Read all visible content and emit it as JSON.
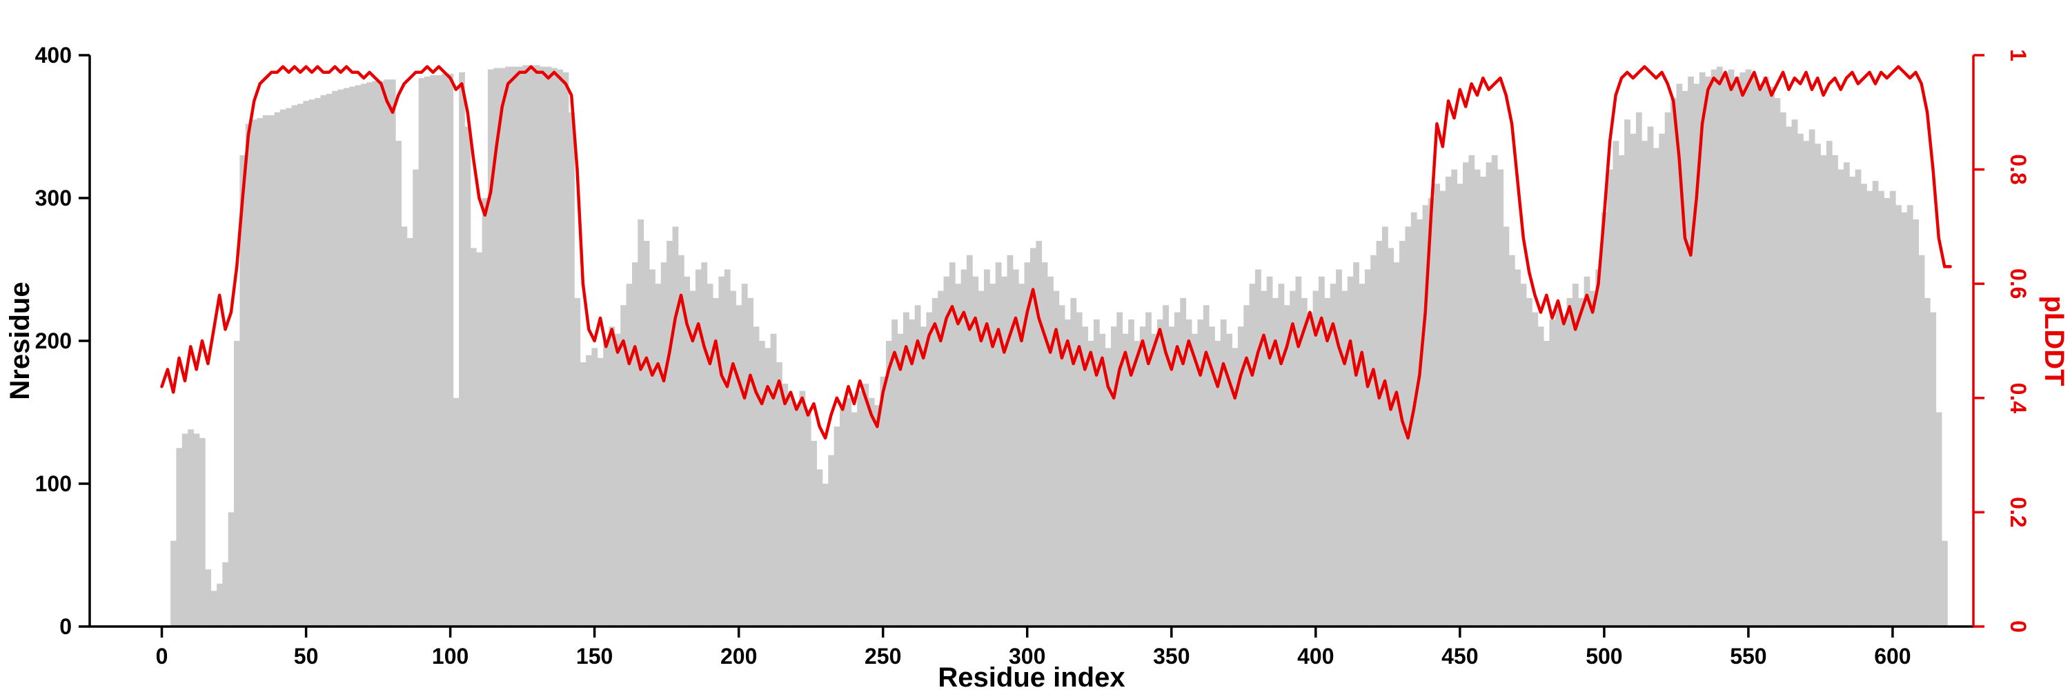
{
  "chart_data": {
    "type": "bar+line",
    "title": "",
    "x_label": "Residue index",
    "y_left_label": "Nresidue",
    "y_right_label": "pLDDT",
    "x_ticks": [
      0,
      50,
      100,
      150,
      200,
      250,
      300,
      350,
      400,
      450,
      500,
      550,
      600
    ],
    "y_left_ticks": [
      0,
      100,
      200,
      300,
      400
    ],
    "y_right_ticks": [
      0,
      0.2,
      0.4,
      0.6,
      0.8,
      1
    ],
    "x_range": [
      -25,
      628
    ],
    "y_left_range": [
      0,
      400
    ],
    "y_right_range": [
      0,
      1
    ],
    "bar_color": "#cbcbcb",
    "line_color": "#e80000",
    "axis_color": "#000000",
    "background_color": "#ffffff",
    "legend": "none",
    "grid": false,
    "series": [
      {
        "name": "Nresidue",
        "type": "bar",
        "axis": "left",
        "x_start": 0,
        "x_step": 2,
        "values": [
          0,
          0,
          60,
          125,
          135,
          138,
          135,
          132,
          40,
          25,
          30,
          45,
          80,
          200,
          330,
          352,
          355,
          356,
          358,
          358,
          360,
          362,
          363,
          365,
          366,
          368,
          369,
          370,
          372,
          373,
          375,
          376,
          377,
          378,
          379,
          380,
          381,
          382,
          382,
          383,
          383,
          340,
          280,
          272,
          320,
          384,
          385,
          386,
          386,
          387,
          387,
          160,
          388,
          350,
          265,
          262,
          300,
          390,
          391,
          391,
          392,
          392,
          392,
          393,
          393,
          393,
          392,
          392,
          391,
          390,
          388,
          360,
          230,
          185,
          190,
          195,
          188,
          200,
          210,
          205,
          225,
          240,
          255,
          285,
          270,
          250,
          240,
          255,
          270,
          280,
          260,
          245,
          235,
          250,
          255,
          240,
          230,
          245,
          250,
          235,
          225,
          240,
          230,
          210,
          200,
          195,
          205,
          185,
          170,
          160,
          155,
          165,
          150,
          130,
          110,
          100,
          120,
          140,
          155,
          160,
          150,
          165,
          170,
          160,
          155,
          175,
          200,
          215,
          205,
          220,
          215,
          225,
          210,
          220,
          230,
          235,
          245,
          255,
          240,
          250,
          260,
          245,
          235,
          250,
          240,
          255,
          245,
          260,
          250,
          240,
          255,
          265,
          270,
          255,
          245,
          235,
          225,
          215,
          230,
          220,
          210,
          200,
          215,
          205,
          195,
          210,
          220,
          205,
          215,
          200,
          210,
          220,
          205,
          215,
          225,
          210,
          220,
          230,
          215,
          205,
          215,
          225,
          210,
          200,
          215,
          205,
          195,
          210,
          225,
          240,
          250,
          235,
          245,
          230,
          240,
          225,
          235,
          245,
          230,
          220,
          235,
          245,
          230,
          240,
          250,
          235,
          245,
          255,
          240,
          250,
          260,
          270,
          280,
          265,
          255,
          270,
          280,
          290,
          285,
          295,
          300,
          310,
          305,
          315,
          320,
          310,
          325,
          330,
          320,
          315,
          325,
          330,
          320,
          280,
          260,
          250,
          240,
          230,
          220,
          210,
          200,
          215,
          225,
          215,
          230,
          240,
          230,
          245,
          235,
          250,
          290,
          320,
          340,
          330,
          355,
          345,
          360,
          340,
          350,
          335,
          345,
          360,
          370,
          380,
          375,
          385,
          380,
          388,
          385,
          390,
          392,
          388,
          390,
          385,
          388,
          390,
          385,
          380,
          385,
          378,
          370,
          360,
          350,
          355,
          345,
          340,
          348,
          338,
          330,
          340,
          330,
          320,
          325,
          315,
          320,
          310,
          305,
          312,
          305,
          300,
          305,
          295,
          290,
          295,
          285,
          260,
          230,
          220,
          150,
          60,
          0
        ]
      },
      {
        "name": "pLDDT",
        "type": "line",
        "axis": "right",
        "x_start": 0,
        "x_step": 2,
        "values": [
          0.42,
          0.45,
          0.41,
          0.47,
          0.43,
          0.49,
          0.45,
          0.5,
          0.46,
          0.52,
          0.58,
          0.52,
          0.55,
          0.63,
          0.75,
          0.86,
          0.92,
          0.95,
          0.96,
          0.97,
          0.97,
          0.98,
          0.97,
          0.98,
          0.97,
          0.98,
          0.97,
          0.98,
          0.97,
          0.97,
          0.98,
          0.97,
          0.98,
          0.97,
          0.97,
          0.96,
          0.97,
          0.96,
          0.95,
          0.92,
          0.9,
          0.93,
          0.95,
          0.96,
          0.97,
          0.97,
          0.98,
          0.97,
          0.98,
          0.97,
          0.96,
          0.94,
          0.95,
          0.9,
          0.82,
          0.75,
          0.72,
          0.76,
          0.84,
          0.91,
          0.95,
          0.96,
          0.97,
          0.97,
          0.98,
          0.97,
          0.97,
          0.96,
          0.97,
          0.96,
          0.95,
          0.93,
          0.8,
          0.6,
          0.52,
          0.5,
          0.54,
          0.49,
          0.52,
          0.48,
          0.5,
          0.46,
          0.49,
          0.45,
          0.47,
          0.44,
          0.46,
          0.43,
          0.48,
          0.54,
          0.58,
          0.53,
          0.5,
          0.53,
          0.49,
          0.46,
          0.5,
          0.44,
          0.42,
          0.46,
          0.43,
          0.4,
          0.44,
          0.41,
          0.39,
          0.42,
          0.4,
          0.43,
          0.39,
          0.41,
          0.38,
          0.4,
          0.37,
          0.39,
          0.35,
          0.33,
          0.37,
          0.4,
          0.38,
          0.42,
          0.39,
          0.43,
          0.4,
          0.37,
          0.35,
          0.41,
          0.45,
          0.48,
          0.45,
          0.49,
          0.46,
          0.5,
          0.47,
          0.51,
          0.53,
          0.5,
          0.54,
          0.56,
          0.53,
          0.55,
          0.52,
          0.54,
          0.5,
          0.53,
          0.49,
          0.52,
          0.48,
          0.51,
          0.54,
          0.5,
          0.55,
          0.59,
          0.54,
          0.51,
          0.48,
          0.52,
          0.47,
          0.5,
          0.46,
          0.49,
          0.45,
          0.48,
          0.44,
          0.47,
          0.42,
          0.4,
          0.45,
          0.48,
          0.44,
          0.47,
          0.5,
          0.46,
          0.49,
          0.52,
          0.48,
          0.45,
          0.49,
          0.46,
          0.5,
          0.47,
          0.44,
          0.48,
          0.45,
          0.42,
          0.46,
          0.43,
          0.4,
          0.44,
          0.47,
          0.44,
          0.48,
          0.51,
          0.47,
          0.5,
          0.46,
          0.49,
          0.53,
          0.49,
          0.52,
          0.55,
          0.51,
          0.54,
          0.5,
          0.53,
          0.49,
          0.46,
          0.5,
          0.44,
          0.48,
          0.42,
          0.45,
          0.4,
          0.43,
          0.38,
          0.41,
          0.36,
          0.33,
          0.38,
          0.44,
          0.55,
          0.72,
          0.88,
          0.84,
          0.92,
          0.89,
          0.94,
          0.91,
          0.95,
          0.93,
          0.96,
          0.94,
          0.95,
          0.96,
          0.93,
          0.88,
          0.78,
          0.68,
          0.62,
          0.58,
          0.55,
          0.58,
          0.54,
          0.57,
          0.53,
          0.56,
          0.52,
          0.55,
          0.58,
          0.55,
          0.6,
          0.72,
          0.85,
          0.93,
          0.96,
          0.97,
          0.96,
          0.97,
          0.98,
          0.97,
          0.96,
          0.97,
          0.95,
          0.92,
          0.82,
          0.68,
          0.65,
          0.75,
          0.88,
          0.94,
          0.96,
          0.95,
          0.97,
          0.94,
          0.96,
          0.93,
          0.95,
          0.97,
          0.94,
          0.96,
          0.93,
          0.95,
          0.97,
          0.94,
          0.96,
          0.95,
          0.97,
          0.94,
          0.96,
          0.93,
          0.95,
          0.96,
          0.94,
          0.96,
          0.97,
          0.95,
          0.96,
          0.97,
          0.95,
          0.97,
          0.96,
          0.97,
          0.98,
          0.97,
          0.96,
          0.97,
          0.95,
          0.9,
          0.8,
          0.68,
          0.63,
          0.63
        ]
      }
    ]
  }
}
